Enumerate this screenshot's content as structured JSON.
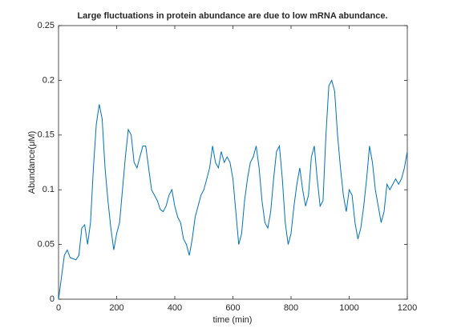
{
  "chart_data": {
    "type": "line",
    "title": "Large fluctuations in protein abundance are due to low mRNA abundance.",
    "x_label": "time (min)",
    "y_label": "Abundance(μM)",
    "x": [
      0,
      10,
      20,
      30,
      40,
      50,
      60,
      70,
      80,
      90,
      100,
      110,
      120,
      130,
      140,
      150,
      160,
      170,
      180,
      190,
      200,
      210,
      220,
      230,
      240,
      250,
      260,
      270,
      280,
      290,
      300,
      310,
      320,
      330,
      340,
      350,
      360,
      370,
      380,
      390,
      400,
      410,
      420,
      430,
      440,
      450,
      460,
      470,
      480,
      490,
      500,
      510,
      520,
      530,
      540,
      550,
      560,
      570,
      580,
      590,
      600,
      610,
      620,
      630,
      640,
      650,
      660,
      670,
      680,
      690,
      700,
      710,
      720,
      730,
      740,
      750,
      760,
      770,
      780,
      790,
      800,
      810,
      820,
      830,
      840,
      850,
      860,
      870,
      880,
      890,
      900,
      910,
      920,
      930,
      940,
      950,
      960,
      970,
      980,
      990,
      1000,
      1010,
      1020,
      1030,
      1040,
      1050,
      1060,
      1070,
      1080,
      1090,
      1100,
      1110,
      1120,
      1130,
      1140,
      1150,
      1160,
      1170,
      1180,
      1190,
      1200
    ],
    "series": [
      {
        "name": "Abundance",
        "color": "#0072bd",
        "values": [
          0,
          0.02,
          0.04,
          0.045,
          0.038,
          0.037,
          0.036,
          0.04,
          0.065,
          0.068,
          0.05,
          0.07,
          0.12,
          0.16,
          0.178,
          0.165,
          0.12,
          0.09,
          0.065,
          0.045,
          0.06,
          0.07,
          0.1,
          0.13,
          0.155,
          0.15,
          0.125,
          0.12,
          0.13,
          0.14,
          0.14,
          0.12,
          0.1,
          0.095,
          0.09,
          0.082,
          0.08,
          0.085,
          0.095,
          0.1,
          0.085,
          0.075,
          0.07,
          0.055,
          0.05,
          0.04,
          0.055,
          0.075,
          0.085,
          0.095,
          0.1,
          0.11,
          0.12,
          0.14,
          0.125,
          0.12,
          0.135,
          0.125,
          0.13,
          0.125,
          0.11,
          0.08,
          0.05,
          0.06,
          0.09,
          0.11,
          0.125,
          0.13,
          0.14,
          0.12,
          0.09,
          0.07,
          0.065,
          0.08,
          0.11,
          0.135,
          0.14,
          0.11,
          0.07,
          0.05,
          0.06,
          0.085,
          0.105,
          0.12,
          0.1,
          0.085,
          0.095,
          0.13,
          0.14,
          0.11,
          0.085,
          0.09,
          0.15,
          0.195,
          0.2,
          0.19,
          0.15,
          0.12,
          0.095,
          0.08,
          0.1,
          0.095,
          0.07,
          0.055,
          0.065,
          0.085,
          0.11,
          0.14,
          0.125,
          0.1,
          0.085,
          0.07,
          0.08,
          0.105,
          0.1,
          0.105,
          0.11,
          0.105,
          0.11,
          0.12,
          0.135
        ]
      }
    ],
    "xlim": [
      0,
      1200
    ],
    "xticks": [
      0,
      200,
      400,
      600,
      800,
      1000,
      1200
    ],
    "ylim": [
      0,
      0.25
    ],
    "yticks": [
      0,
      0.05,
      0.1,
      0.15,
      0.2,
      0.25
    ],
    "grid": false
  }
}
